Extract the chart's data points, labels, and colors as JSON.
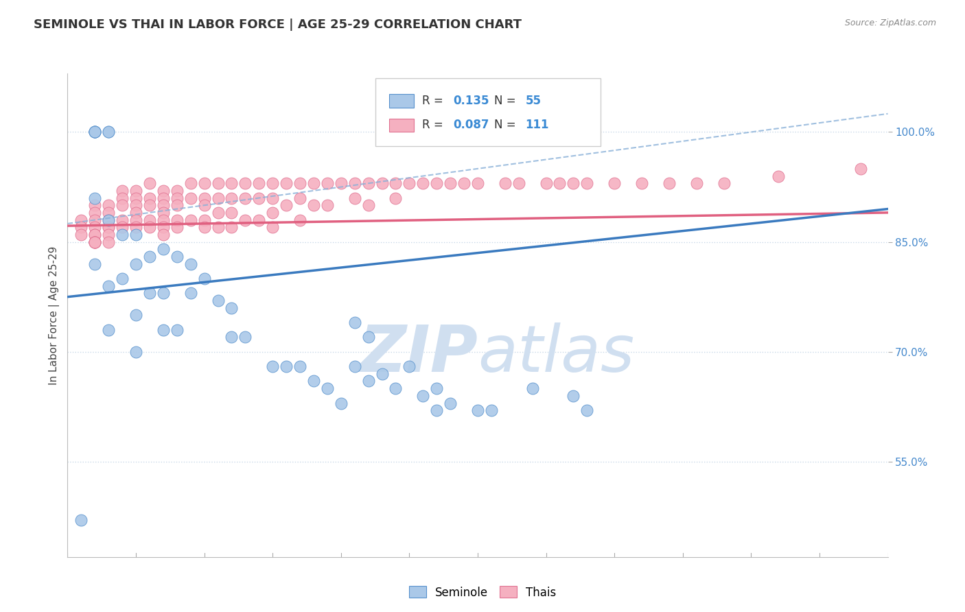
{
  "title": "SEMINOLE VS THAI IN LABOR FORCE | AGE 25-29 CORRELATION CHART",
  "source_text": "Source: ZipAtlas.com",
  "ylabel": "In Labor Force | Age 25-29",
  "ytick_values": [
    0.55,
    0.7,
    0.85,
    1.0
  ],
  "ytick_labels": [
    "55.0%",
    "70.0%",
    "85.0%",
    "100.0%"
  ],
  "xmin": 0.0,
  "xmax": 0.6,
  "ymin": 0.42,
  "ymax": 1.08,
  "seminole_color": "#aac8e8",
  "thai_color": "#f5b0c0",
  "seminole_edge_color": "#5590cc",
  "thai_edge_color": "#e07090",
  "seminole_line_color": "#3a7abf",
  "thai_line_color": "#e06080",
  "dashed_color": "#88b0d8",
  "seminole_R": 0.135,
  "seminole_N": 55,
  "thai_R": 0.087,
  "thai_N": 111,
  "background_color": "#ffffff",
  "grid_color": "#c8d8e8",
  "watermark_color": "#d0dff0",
  "seminole_x": [
    0.01,
    0.02,
    0.02,
    0.02,
    0.02,
    0.02,
    0.02,
    0.02,
    0.03,
    0.03,
    0.03,
    0.03,
    0.03,
    0.04,
    0.04,
    0.05,
    0.05,
    0.05,
    0.05,
    0.06,
    0.06,
    0.07,
    0.07,
    0.07,
    0.08,
    0.08,
    0.09,
    0.09,
    0.1,
    0.11,
    0.12,
    0.12,
    0.13,
    0.15,
    0.16,
    0.17,
    0.18,
    0.19,
    0.2,
    0.21,
    0.21,
    0.22,
    0.22,
    0.23,
    0.24,
    0.25,
    0.26,
    0.27,
    0.27,
    0.28,
    0.3,
    0.31,
    0.34,
    0.37,
    0.38
  ],
  "seminole_y": [
    0.47,
    1.0,
    1.0,
    1.0,
    1.0,
    1.0,
    0.91,
    0.82,
    1.0,
    1.0,
    0.88,
    0.79,
    0.73,
    0.86,
    0.8,
    0.86,
    0.82,
    0.75,
    0.7,
    0.83,
    0.78,
    0.84,
    0.78,
    0.73,
    0.83,
    0.73,
    0.82,
    0.78,
    0.8,
    0.77,
    0.76,
    0.72,
    0.72,
    0.68,
    0.68,
    0.68,
    0.66,
    0.65,
    0.63,
    0.74,
    0.68,
    0.72,
    0.66,
    0.67,
    0.65,
    0.68,
    0.64,
    0.65,
    0.62,
    0.63,
    0.62,
    0.62,
    0.65,
    0.64,
    0.62
  ],
  "thai_x": [
    0.01,
    0.01,
    0.01,
    0.02,
    0.02,
    0.02,
    0.02,
    0.02,
    0.02,
    0.02,
    0.02,
    0.02,
    0.02,
    0.02,
    0.03,
    0.03,
    0.03,
    0.03,
    0.03,
    0.03,
    0.03,
    0.04,
    0.04,
    0.04,
    0.04,
    0.04,
    0.05,
    0.05,
    0.05,
    0.05,
    0.05,
    0.05,
    0.06,
    0.06,
    0.06,
    0.06,
    0.06,
    0.07,
    0.07,
    0.07,
    0.07,
    0.07,
    0.07,
    0.07,
    0.08,
    0.08,
    0.08,
    0.08,
    0.08,
    0.09,
    0.09,
    0.09,
    0.1,
    0.1,
    0.1,
    0.1,
    0.1,
    0.11,
    0.11,
    0.11,
    0.11,
    0.12,
    0.12,
    0.12,
    0.12,
    0.13,
    0.13,
    0.13,
    0.14,
    0.14,
    0.14,
    0.15,
    0.15,
    0.15,
    0.15,
    0.16,
    0.16,
    0.17,
    0.17,
    0.17,
    0.18,
    0.18,
    0.19,
    0.19,
    0.2,
    0.21,
    0.21,
    0.22,
    0.22,
    0.23,
    0.24,
    0.24,
    0.25,
    0.26,
    0.27,
    0.28,
    0.29,
    0.3,
    0.32,
    0.33,
    0.35,
    0.36,
    0.37,
    0.38,
    0.4,
    0.42,
    0.44,
    0.46,
    0.48,
    0.52,
    0.58
  ],
  "thai_y": [
    0.88,
    0.87,
    0.86,
    0.9,
    0.89,
    0.88,
    0.87,
    0.86,
    0.86,
    0.85,
    0.85,
    0.85,
    0.85,
    0.85,
    0.9,
    0.89,
    0.88,
    0.87,
    0.87,
    0.86,
    0.85,
    0.92,
    0.91,
    0.9,
    0.88,
    0.87,
    0.92,
    0.91,
    0.9,
    0.89,
    0.88,
    0.87,
    0.93,
    0.91,
    0.9,
    0.88,
    0.87,
    0.92,
    0.91,
    0.9,
    0.89,
    0.88,
    0.87,
    0.86,
    0.92,
    0.91,
    0.9,
    0.88,
    0.87,
    0.93,
    0.91,
    0.88,
    0.93,
    0.91,
    0.9,
    0.88,
    0.87,
    0.93,
    0.91,
    0.89,
    0.87,
    0.93,
    0.91,
    0.89,
    0.87,
    0.93,
    0.91,
    0.88,
    0.93,
    0.91,
    0.88,
    0.93,
    0.91,
    0.89,
    0.87,
    0.93,
    0.9,
    0.93,
    0.91,
    0.88,
    0.93,
    0.9,
    0.93,
    0.9,
    0.93,
    0.93,
    0.91,
    0.93,
    0.9,
    0.93,
    0.93,
    0.91,
    0.93,
    0.93,
    0.93,
    0.93,
    0.93,
    0.93,
    0.93,
    0.93,
    0.93,
    0.93,
    0.93,
    0.93,
    0.93,
    0.93,
    0.93,
    0.93,
    0.93,
    0.94,
    0.95
  ]
}
